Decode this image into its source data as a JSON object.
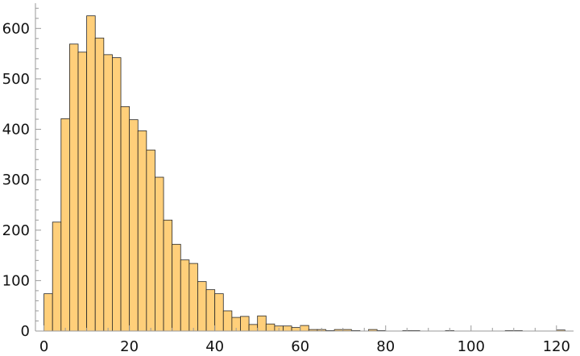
{
  "chart_data": {
    "type": "bar",
    "subtype": "histogram",
    "title": "",
    "xlabel": "",
    "ylabel": "",
    "bin_width": 2,
    "bin_start": 0,
    "xlim": [
      -2,
      124
    ],
    "ylim": [
      0,
      650
    ],
    "x_ticks": [
      0,
      20,
      40,
      60,
      80,
      100,
      120
    ],
    "y_ticks": [
      0,
      100,
      200,
      300,
      400,
      500,
      600
    ],
    "x_tick_labels": [
      "0",
      "20",
      "40",
      "60",
      "80",
      "100",
      "120"
    ],
    "y_tick_labels": [
      "0",
      "100",
      "200",
      "300",
      "400",
      "500",
      "600"
    ],
    "grid": false,
    "legend": "none",
    "colors": {
      "bar_fill": "#ffcf7a",
      "bar_edge": "#262626",
      "axis": "#9a9a9a"
    },
    "values": [
      74,
      216,
      421,
      569,
      553,
      625,
      581,
      548,
      542,
      445,
      419,
      397,
      359,
      305,
      220,
      172,
      141,
      134,
      98,
      82,
      74,
      40,
      27,
      29,
      13,
      30,
      14,
      10,
      10,
      7,
      11,
      3,
      3,
      1,
      3,
      3,
      1,
      0,
      3,
      1,
      0,
      0,
      1,
      1,
      0,
      0,
      0,
      1,
      0,
      0,
      0,
      0,
      0,
      0,
      1,
      1,
      0,
      0,
      0,
      0,
      2
    ],
    "bin_starts": [
      0,
      2,
      4,
      6,
      8,
      10,
      12,
      14,
      16,
      18,
      20,
      22,
      24,
      26,
      28,
      30,
      32,
      34,
      36,
      38,
      40,
      42,
      44,
      46,
      48,
      50,
      52,
      54,
      56,
      58,
      60,
      62,
      64,
      66,
      68,
      70,
      72,
      74,
      76,
      78,
      80,
      82,
      84,
      86,
      88,
      90,
      92,
      94,
      96,
      98,
      100,
      102,
      104,
      106,
      108,
      110,
      112,
      114,
      116,
      118,
      120
    ]
  }
}
